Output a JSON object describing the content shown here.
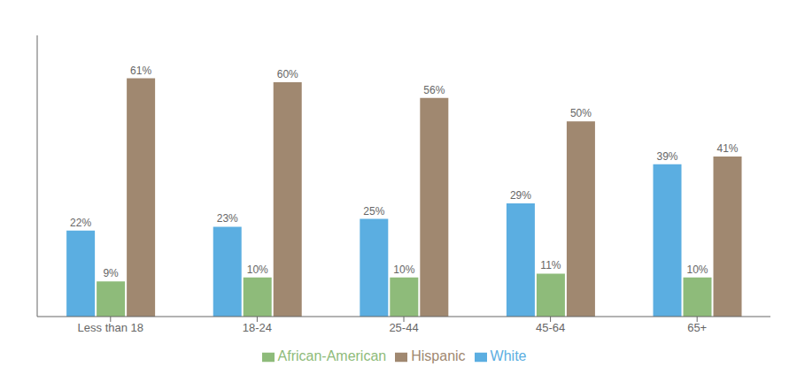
{
  "chart_data": {
    "type": "bar",
    "categories": [
      "Less than 18",
      "18-24",
      "25-44",
      "45-64",
      "65+"
    ],
    "series": [
      {
        "name": "White",
        "color": "#5baee1",
        "values": [
          22,
          23,
          25,
          29,
          39
        ],
        "value_labels": [
          "22%",
          "23%",
          "25%",
          "29%",
          "39%"
        ]
      },
      {
        "name": "African-American",
        "color": "#8ebb7a",
        "values": [
          9,
          10,
          10,
          11,
          10
        ],
        "value_labels": [
          "9%",
          "10%",
          "10%",
          "11%",
          "10%"
        ]
      },
      {
        "name": "Hispanic",
        "color": "#a08870",
        "values": [
          61,
          60,
          56,
          50,
          41
        ],
        "value_labels": [
          "61%",
          "60%",
          "56%",
          "50%",
          "41%"
        ]
      }
    ],
    "ylim": [
      0,
      72
    ],
    "data_labels": true,
    "tick_labels": "x",
    "legend": "bottom",
    "grid": false
  }
}
